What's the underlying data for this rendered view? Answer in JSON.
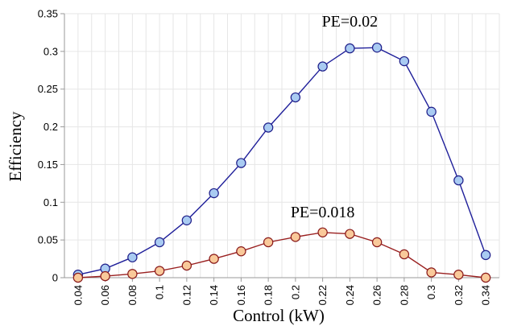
{
  "chart_data": {
    "type": "line",
    "title": "",
    "xlabel": "Control (kW)",
    "ylabel": "Efficiency",
    "x": [
      0.04,
      0.06,
      0.08,
      0.1,
      0.12,
      0.14,
      0.16,
      0.18,
      0.2,
      0.22,
      0.24,
      0.26,
      0.28,
      0.3,
      0.32,
      0.34
    ],
    "x_tick_labels": [
      "0.04",
      "0.06",
      "0.08",
      "0.1",
      "0.12",
      "0.14",
      "0.16",
      "0.18",
      "0.2",
      "0.22",
      "0.24",
      "0.26",
      "0.28",
      "0.3",
      "0.32",
      "0.34"
    ],
    "y_tick_labels": [
      "0",
      "0.05",
      "0.1",
      "0.15",
      "0.2",
      "0.25",
      "0.3",
      "0.35"
    ],
    "y_ticks": [
      0,
      0.05,
      0.1,
      0.15,
      0.2,
      0.25,
      0.3,
      0.35
    ],
    "ylim": [
      0,
      0.35
    ],
    "grid": true,
    "series": [
      {
        "values": [
          0.004,
          0.012,
          0.027,
          0.047,
          0.076,
          0.112,
          0.152,
          0.199,
          0.239,
          0.28,
          0.304,
          0.305,
          0.287,
          0.22,
          0.129,
          0.03
        ],
        "line_color": "#1f1f9a",
        "marker_fill": "#a9cbf2",
        "marker_stroke": "#1f1f8a"
      },
      {
        "values": [
          0.0,
          0.002,
          0.005,
          0.009,
          0.016,
          0.025,
          0.035,
          0.047,
          0.054,
          0.06,
          0.058,
          0.047,
          0.031,
          0.007,
          0.004,
          0.0
        ],
        "line_color": "#9a2020",
        "marker_fill": "#f9c99a",
        "marker_stroke": "#8a1a1a"
      }
    ],
    "annotations": [
      {
        "text": "PE=0.02",
        "x": 0.24,
        "y": 0.333
      },
      {
        "text": "PE=0.018",
        "x": 0.22,
        "y": 0.08
      }
    ]
  }
}
